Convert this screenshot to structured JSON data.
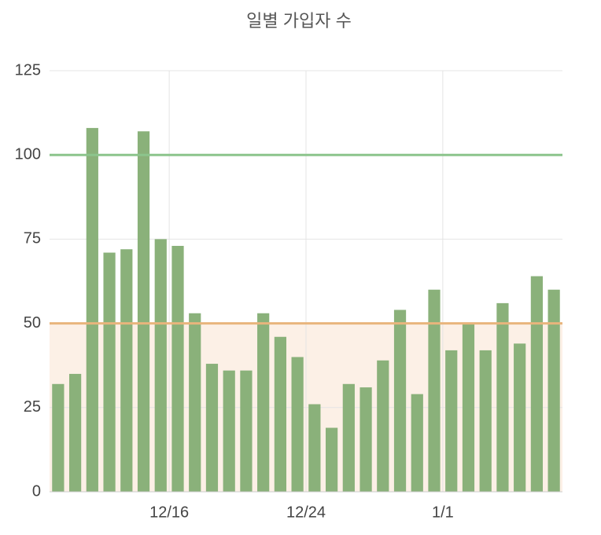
{
  "chart_data": {
    "type": "bar",
    "title": "일별 가입자 수",
    "categories": [
      null,
      null,
      null,
      null,
      null,
      null,
      null,
      "12/16",
      null,
      null,
      null,
      null,
      null,
      null,
      null,
      "12/24",
      null,
      null,
      null,
      null,
      null,
      null,
      null,
      "1/1",
      null,
      null,
      null,
      null,
      null,
      null
    ],
    "values": [
      32,
      35,
      108,
      71,
      72,
      107,
      75,
      73,
      53,
      38,
      36,
      36,
      53,
      46,
      40,
      26,
      19,
      32,
      31,
      39,
      54,
      29,
      60,
      42,
      50,
      42,
      56,
      44,
      64,
      60
    ],
    "color": "#8ab17a",
    "ylim": [
      0,
      125
    ],
    "yticks": [
      0,
      25,
      50,
      75,
      100,
      125
    ],
    "grid": true,
    "reference_lines": [
      {
        "value": 100,
        "color": "#8cc48c"
      },
      {
        "value": 50,
        "color": "#e8b57c",
        "fill_below": "#fcf0e6"
      }
    ]
  }
}
